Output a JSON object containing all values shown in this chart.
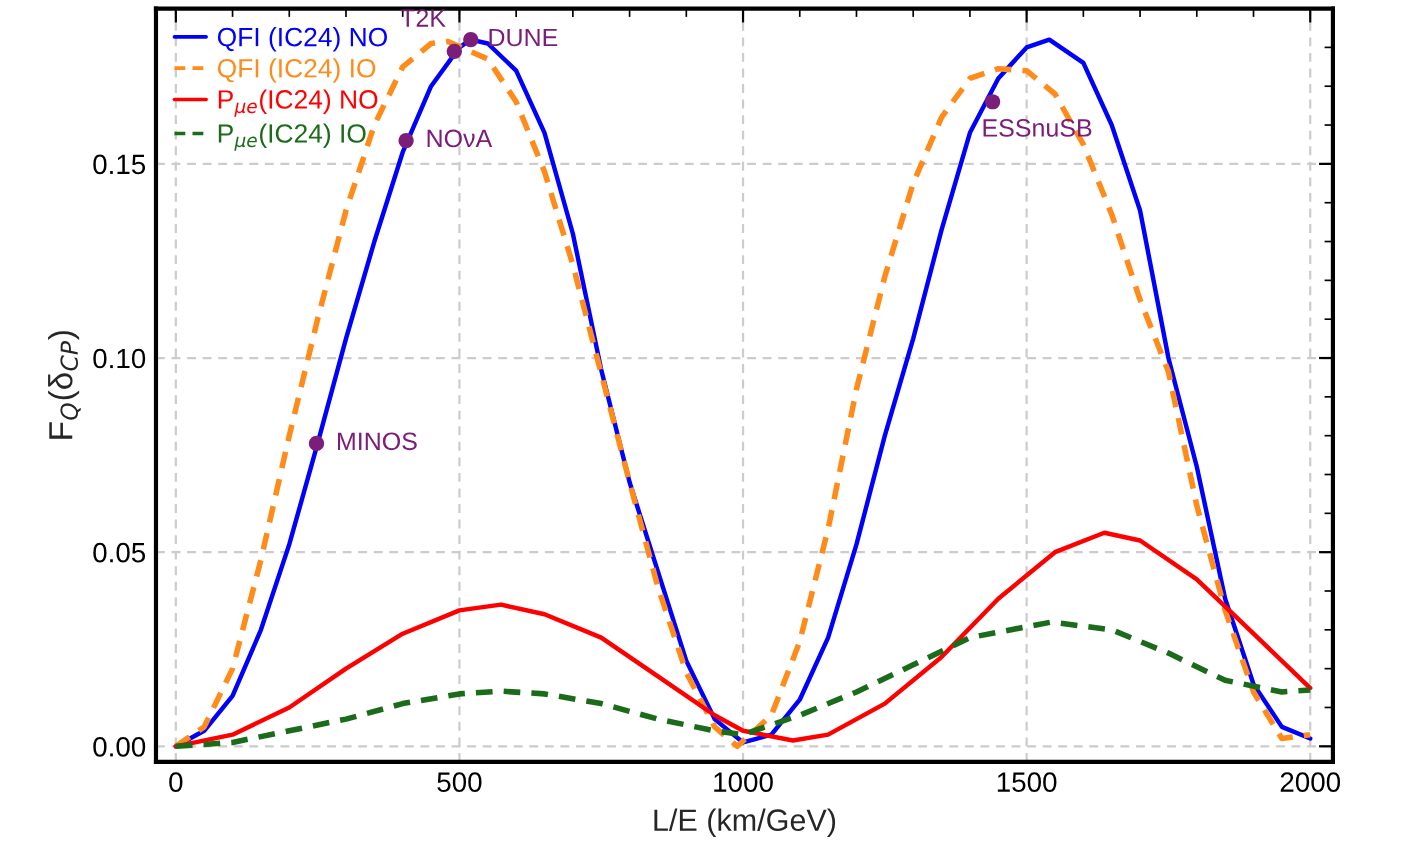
{
  "chart_data": {
    "type": "line",
    "xlabel": "L/E (km/GeV)",
    "ylabel": "F$_{Q}$(δ$_{CP}$)",
    "xlim": [
      -35,
      2040
    ],
    "ylim": [
      -0.004,
      0.19
    ],
    "xticks": [
      0,
      500,
      1000,
      1500,
      2000
    ],
    "yticks": [
      {
        "value": 0,
        "label": "0.00"
      },
      {
        "value": 0.05,
        "label": "0.05"
      },
      {
        "value": 0.1,
        "label": "0.10"
      },
      {
        "value": 0.15,
        "label": "0.15"
      }
    ],
    "grid": true,
    "legend": "top left",
    "series": [
      {
        "name": "QFI (IC24) NO",
        "color": "#0000ff",
        "line_style": "solid",
        "x": [
          0,
          50,
          100,
          150,
          200,
          250,
          300,
          350,
          400,
          450,
          500,
          520,
          550,
          600,
          650,
          700,
          750,
          800,
          850,
          900,
          950,
          1000,
          1050,
          1100,
          1150,
          1200,
          1250,
          1300,
          1350,
          1400,
          1450,
          1500,
          1540,
          1600,
          1650,
          1700,
          1750,
          1800,
          1850,
          1900,
          1950,
          2000
        ],
        "values": [
          0,
          0.004,
          0.013,
          0.03,
          0.052,
          0.078,
          0.105,
          0.13,
          0.153,
          0.17,
          0.18,
          0.182,
          0.181,
          0.174,
          0.158,
          0.132,
          0.097,
          0.068,
          0.045,
          0.022,
          0.007,
          0.001,
          0.003,
          0.012,
          0.028,
          0.052,
          0.08,
          0.105,
          0.133,
          0.158,
          0.172,
          0.18,
          0.182,
          0.176,
          0.16,
          0.138,
          0.1,
          0.072,
          0.038,
          0.016,
          0.005,
          0.002
        ]
      },
      {
        "name": "QFI (IC24) IO",
        "color": "#ff8c1a",
        "line_style": "dashed",
        "x": [
          0,
          50,
          100,
          150,
          200,
          250,
          300,
          350,
          400,
          450,
          480,
          550,
          600,
          650,
          700,
          750,
          800,
          850,
          900,
          950,
          990,
          1050,
          1100,
          1150,
          1200,
          1250,
          1300,
          1350,
          1400,
          1450,
          1500,
          1550,
          1600,
          1650,
          1700,
          1750,
          1800,
          1850,
          1900,
          1950,
          2000
        ],
        "values": [
          0,
          0.005,
          0.02,
          0.048,
          0.08,
          0.11,
          0.138,
          0.16,
          0.175,
          0.181,
          0.1815,
          0.177,
          0.166,
          0.148,
          0.124,
          0.096,
          0.068,
          0.041,
          0.019,
          0.005,
          0,
          0.008,
          0.027,
          0.056,
          0.092,
          0.121,
          0.145,
          0.162,
          0.172,
          0.1745,
          0.174,
          0.168,
          0.155,
          0.137,
          0.115,
          0.0965,
          0.062,
          0.035,
          0.014,
          0.002,
          0.003
        ]
      },
      {
        "name": "P$_{μe}$(IC24) NO",
        "color": "#ff0000",
        "line_style": "solid",
        "x": [
          0,
          100,
          200,
          300,
          400,
          500,
          573,
          650,
          750,
          850,
          950,
          1000,
          1088,
          1150,
          1250,
          1350,
          1450,
          1550,
          1637,
          1700,
          1800,
          1900,
          2000
        ],
        "values": [
          0,
          0.003,
          0.01,
          0.02,
          0.029,
          0.035,
          0.0365,
          0.034,
          0.028,
          0.018,
          0.008,
          0.004,
          0.0015,
          0.003,
          0.011,
          0.023,
          0.038,
          0.05,
          0.055,
          0.053,
          0.043,
          0.029,
          0.015
        ]
      },
      {
        "name": "P$_{μe}$(IC24) IO",
        "color": "#1a6b1a",
        "line_style": "dashed",
        "x": [
          0,
          100,
          200,
          300,
          400,
          500,
          573,
          650,
          750,
          850,
          950,
          1000,
          1029,
          1100,
          1200,
          1300,
          1400,
          1544,
          1650,
          1750,
          1850,
          1950,
          2000
        ],
        "values": [
          0,
          0.001,
          0.004,
          0.007,
          0.011,
          0.0135,
          0.0142,
          0.0135,
          0.011,
          0.007,
          0.004,
          0.003,
          0.0045,
          0.008,
          0.014,
          0.021,
          0.028,
          0.032,
          0.03,
          0.024,
          0.017,
          0.014,
          0.0145
        ]
      },
      {
        "type": "scatter",
        "color": "#7b1e7a",
        "marker": "circle",
        "x": [
          248,
          406,
          491,
          520,
          1440
        ],
        "values": [
          0.078,
          0.156,
          0.179,
          0.182,
          0.166
        ]
      }
    ],
    "annotations": [
      {
        "text": "MINOS",
        "x": 248,
        "y": 0.078
      },
      {
        "text": "NOνA",
        "x": 406,
        "y": 0.156
      },
      {
        "text": "T2K",
        "x": 491,
        "y": 0.179
      },
      {
        "text": "DUNE",
        "x": 520,
        "y": 0.182
      },
      {
        "text": "ESSnuSB",
        "x": 1440,
        "y": 0.166
      }
    ]
  }
}
